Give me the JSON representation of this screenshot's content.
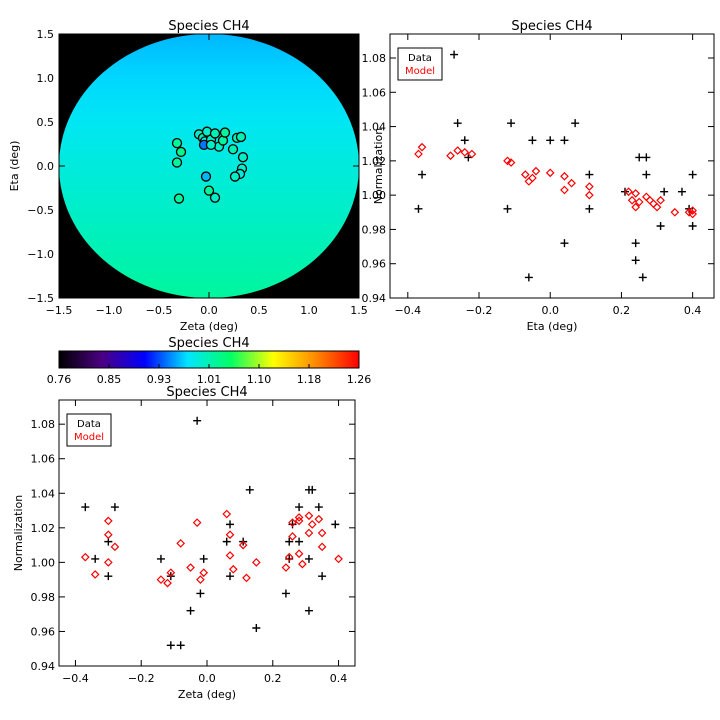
{
  "chart_data": [
    {
      "type": "heatmap",
      "title": "Species CH4",
      "xlabel": "Zeta (deg)",
      "ylabel": "Eta (deg)",
      "xlim": [
        -1.5,
        1.5
      ],
      "ylim": [
        -1.5,
        1.5
      ],
      "xticks": [
        "−1.5",
        "−1.0",
        "−0.5",
        "0.0",
        "0.5",
        "1.0",
        "1.5"
      ],
      "yticks": [
        "−1.5",
        "−1.0",
        "−0.5",
        "0.0",
        "0.5",
        "1.0",
        "1.5"
      ],
      "xtick_values": [
        -1.5,
        -1.0,
        -0.5,
        0.0,
        0.5,
        1.0,
        1.5
      ],
      "ytick_values": [
        -1.5,
        -1.0,
        -0.5,
        0.0,
        0.5,
        1.0,
        1.5
      ],
      "field_radius": 1.5,
      "field_gradient_eta": [
        -1.5,
        1.5
      ],
      "field_gradient_values": [
        1.02,
        0.96
      ],
      "background_color": "#000000",
      "points": [
        {
          "x": -0.32,
          "y": 0.04,
          "value": 1.02
        },
        {
          "x": -0.28,
          "y": 0.16,
          "value": 1.03
        },
        {
          "x": -0.32,
          "y": 0.26,
          "value": 1.02
        },
        {
          "x": -0.3,
          "y": -0.37,
          "value": 1.02
        },
        {
          "x": -0.1,
          "y": 0.36,
          "value": 1.0
        },
        {
          "x": -0.06,
          "y": 0.32,
          "value": 1.01
        },
        {
          "x": -0.04,
          "y": 0.28,
          "value": 0.99
        },
        {
          "x": -0.02,
          "y": 0.39,
          "value": 1.0
        },
        {
          "x": 0.02,
          "y": 0.3,
          "value": 1.0
        },
        {
          "x": 0.06,
          "y": 0.37,
          "value": 1.01
        },
        {
          "x": 0.1,
          "y": 0.22,
          "value": 1.0
        },
        {
          "x": 0.14,
          "y": 0.29,
          "value": 1.02
        },
        {
          "x": 0.16,
          "y": 0.38,
          "value": 1.02
        },
        {
          "x": 0.24,
          "y": 0.19,
          "value": 1.01
        },
        {
          "x": 0.28,
          "y": 0.32,
          "value": 1.01
        },
        {
          "x": 0.32,
          "y": 0.33,
          "value": 1.01
        },
        {
          "x": 0.34,
          "y": 0.1,
          "value": 1.0
        },
        {
          "x": 0.33,
          "y": -0.03,
          "value": 1.0
        },
        {
          "x": 0.31,
          "y": -0.09,
          "value": 0.99
        },
        {
          "x": 0.26,
          "y": -0.12,
          "value": 1.0
        },
        {
          "x": -0.03,
          "y": -0.12,
          "value": 0.96
        },
        {
          "x": 0.0,
          "y": -0.28,
          "value": 1.02
        },
        {
          "x": 0.06,
          "y": -0.36,
          "value": 1.0
        },
        {
          "x": -0.05,
          "y": 0.24,
          "value": 0.94
        },
        {
          "x": 0.02,
          "y": 0.24,
          "value": 1.0
        }
      ],
      "marker_edge_color": "#000000"
    },
    {
      "type": "colorbar",
      "title": "Species CH4",
      "ticks": [
        "0.76",
        "0.85",
        "0.93",
        "1.01",
        "1.10",
        "1.18",
        "1.26"
      ],
      "range": [
        0.76,
        1.26
      ],
      "colormap": [
        "#000000",
        "#4b0082",
        "#0000ff",
        "#00e5ff",
        "#00ff66",
        "#ffff00",
        "#ff8800",
        "#ff0000"
      ]
    },
    {
      "type": "scatter",
      "title": "Species CH4",
      "xlabel": "Eta (deg)",
      "ylabel": "Normalization",
      "xlim": [
        -0.45,
        0.46
      ],
      "ylim": [
        0.94,
        1.094
      ],
      "xticks": [
        "−0.4",
        "−0.2",
        "0.0",
        "0.2",
        "0.4"
      ],
      "xtick_values": [
        -0.4,
        -0.2,
        0.0,
        0.2,
        0.4
      ],
      "yticks": [
        "0.94",
        "0.96",
        "0.98",
        "1.00",
        "1.02",
        "1.04",
        "1.06",
        "1.08"
      ],
      "ytick_values": [
        0.94,
        0.96,
        0.98,
        1.0,
        1.02,
        1.04,
        1.06,
        1.08
      ],
      "legend": {
        "position": "top-left",
        "entries": [
          {
            "label": "Data",
            "color": "#000000"
          },
          {
            "label": "Model",
            "color": "#ff0000"
          }
        ]
      },
      "series": [
        {
          "name": "Data",
          "marker": "plus",
          "color": "#000000",
          "points": [
            [
              -0.37,
              0.992
            ],
            [
              -0.36,
              1.012
            ],
            [
              -0.27,
              1.082
            ],
            [
              -0.26,
              1.042
            ],
            [
              -0.24,
              1.032
            ],
            [
              -0.23,
              1.022
            ],
            [
              -0.12,
              0.992
            ],
            [
              -0.11,
              1.042
            ],
            [
              -0.06,
              0.952
            ],
            [
              -0.05,
              1.032
            ],
            [
              0.0,
              1.032
            ],
            [
              0.04,
              1.032
            ],
            [
              0.04,
              0.972
            ],
            [
              0.07,
              1.042
            ],
            [
              0.11,
              1.012
            ],
            [
              0.11,
              0.992
            ],
            [
              0.21,
              1.002
            ],
            [
              0.24,
              0.962
            ],
            [
              0.24,
              0.972
            ],
            [
              0.25,
              1.022
            ],
            [
              0.27,
              1.022
            ],
            [
              0.27,
              1.012
            ],
            [
              0.26,
              0.952
            ],
            [
              0.31,
              0.982
            ],
            [
              0.32,
              1.002
            ],
            [
              0.37,
              1.002
            ],
            [
              0.39,
              0.992
            ],
            [
              0.4,
              1.012
            ],
            [
              0.4,
              0.982
            ]
          ]
        },
        {
          "name": "Model",
          "marker": "diamond",
          "color": "#ff0000",
          "points": [
            [
              -0.37,
              1.024
            ],
            [
              -0.36,
              1.028
            ],
            [
              -0.28,
              1.023
            ],
            [
              -0.26,
              1.026
            ],
            [
              -0.24,
              1.025
            ],
            [
              -0.22,
              1.024
            ],
            [
              -0.12,
              1.02
            ],
            [
              -0.11,
              1.019
            ],
            [
              -0.07,
              1.012
            ],
            [
              -0.05,
              1.01
            ],
            [
              -0.04,
              1.014
            ],
            [
              -0.06,
              1.008
            ],
            [
              0.0,
              1.013
            ],
            [
              0.04,
              1.011
            ],
            [
              0.06,
              1.007
            ],
            [
              0.04,
              1.003
            ],
            [
              0.11,
              1.005
            ],
            [
              0.11,
              1.0
            ],
            [
              0.22,
              1.002
            ],
            [
              0.23,
              0.997
            ],
            [
              0.24,
              0.993
            ],
            [
              0.24,
              1.001
            ],
            [
              0.25,
              0.996
            ],
            [
              0.27,
              0.999
            ],
            [
              0.28,
              0.997
            ],
            [
              0.3,
              0.993
            ],
            [
              0.29,
              0.995
            ],
            [
              0.31,
              0.997
            ],
            [
              0.35,
              0.99
            ],
            [
              0.39,
              0.99
            ],
            [
              0.4,
              0.989
            ],
            [
              0.4,
              0.991
            ]
          ]
        }
      ]
    },
    {
      "type": "scatter",
      "title": "Species CH4",
      "xlabel": "Zeta (deg)",
      "ylabel": "Normalization",
      "xlim": [
        -0.45,
        0.45
      ],
      "ylim": [
        0.94,
        1.094
      ],
      "xticks": [
        "−0.4",
        "−0.2",
        "0.0",
        "0.2",
        "0.4"
      ],
      "xtick_values": [
        -0.4,
        -0.2,
        0.0,
        0.2,
        0.4
      ],
      "yticks": [
        "0.94",
        "0.96",
        "0.98",
        "1.00",
        "1.02",
        "1.04",
        "1.06",
        "1.08"
      ],
      "ytick_values": [
        0.94,
        0.96,
        0.98,
        1.0,
        1.02,
        1.04,
        1.06,
        1.08
      ],
      "legend": {
        "position": "top-left",
        "entries": [
          {
            "label": "Data",
            "color": "#000000"
          },
          {
            "label": "Model",
            "color": "#ff0000"
          }
        ]
      },
      "series": [
        {
          "name": "Data",
          "marker": "plus",
          "color": "#000000",
          "points": [
            [
              -0.37,
              1.032
            ],
            [
              -0.34,
              1.002
            ],
            [
              -0.3,
              0.992
            ],
            [
              -0.3,
              1.012
            ],
            [
              -0.28,
              1.032
            ],
            [
              -0.14,
              1.002
            ],
            [
              -0.11,
              0.992
            ],
            [
              -0.11,
              0.952
            ],
            [
              -0.08,
              0.952
            ],
            [
              -0.05,
              0.972
            ],
            [
              -0.03,
              1.082
            ],
            [
              -0.02,
              0.982
            ],
            [
              -0.01,
              1.002
            ],
            [
              0.06,
              1.012
            ],
            [
              0.07,
              0.992
            ],
            [
              0.07,
              1.022
            ],
            [
              0.11,
              1.012
            ],
            [
              0.13,
              1.042
            ],
            [
              0.15,
              0.962
            ],
            [
              0.24,
              0.982
            ],
            [
              0.25,
              1.012
            ],
            [
              0.25,
              1.002
            ],
            [
              0.26,
              1.022
            ],
            [
              0.28,
              1.012
            ],
            [
              0.28,
              1.032
            ],
            [
              0.31,
              1.002
            ],
            [
              0.31,
              0.972
            ],
            [
              0.31,
              1.042
            ],
            [
              0.32,
              1.042
            ],
            [
              0.34,
              1.032
            ],
            [
              0.35,
              0.992
            ],
            [
              0.39,
              1.022
            ]
          ]
        },
        {
          "name": "Model",
          "marker": "diamond",
          "color": "#ff0000",
          "points": [
            [
              -0.37,
              1.003
            ],
            [
              -0.34,
              0.993
            ],
            [
              -0.3,
              1.024
            ],
            [
              -0.3,
              1.016
            ],
            [
              -0.3,
              1.0
            ],
            [
              -0.28,
              1.009
            ],
            [
              -0.14,
              0.99
            ],
            [
              -0.12,
              0.988
            ],
            [
              -0.11,
              0.994
            ],
            [
              -0.08,
              1.011
            ],
            [
              -0.05,
              0.997
            ],
            [
              -0.03,
              1.023
            ],
            [
              -0.02,
              0.99
            ],
            [
              -0.01,
              0.994
            ],
            [
              0.06,
              1.028
            ],
            [
              0.07,
              1.016
            ],
            [
              0.07,
              1.004
            ],
            [
              0.08,
              0.996
            ],
            [
              0.11,
              1.01
            ],
            [
              0.12,
              0.991
            ],
            [
              0.15,
              1.0
            ],
            [
              0.24,
              0.997
            ],
            [
              0.25,
              1.003
            ],
            [
              0.26,
              1.015
            ],
            [
              0.26,
              1.023
            ],
            [
              0.28,
              1.024
            ],
            [
              0.28,
              1.005
            ],
            [
              0.29,
              0.999
            ],
            [
              0.28,
              1.026
            ],
            [
              0.31,
              1.027
            ],
            [
              0.31,
              1.017
            ],
            [
              0.32,
              1.022
            ],
            [
              0.34,
              1.025
            ],
            [
              0.35,
              1.009
            ],
            [
              0.35,
              1.017
            ],
            [
              0.4,
              1.002
            ]
          ]
        }
      ]
    }
  ]
}
